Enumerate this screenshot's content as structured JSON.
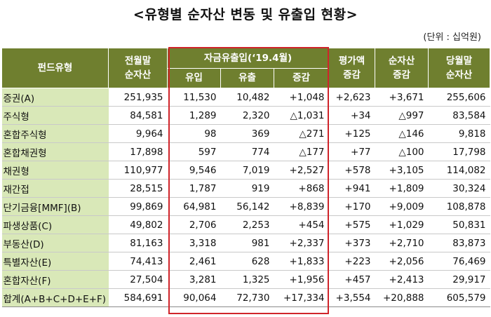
{
  "title": "<유형별 순자산 변동 및 유출입 현황>",
  "unit": "(단위 : 십억원)",
  "headers": {
    "fund_type": "펀드유형",
    "prev_nav_line1": "전월말",
    "prev_nav_line2": "순자산",
    "flow_group": "자금유출입(‘19.4월)",
    "inflow": "유입",
    "outflow": "유출",
    "net": "증감",
    "valuation_line1": "평가액",
    "valuation_line2": "증감",
    "nav_change_line1": "순자산",
    "nav_change_line2": "증감",
    "curr_nav_line1": "당월말",
    "curr_nav_line2": "순자산"
  },
  "rows": [
    {
      "label": "증권(A)",
      "prev": "251,935",
      "inflow": "11,530",
      "outflow": "10,482",
      "net": "+1,048",
      "valuation": "+2,623",
      "nav_change": "+3,671",
      "curr": "255,606"
    },
    {
      "label": "주식형",
      "prev": "84,581",
      "inflow": "1,289",
      "outflow": "2,320",
      "net": "△1,031",
      "valuation": "+34",
      "nav_change": "△997",
      "curr": "83,584"
    },
    {
      "label": "혼합주식형",
      "prev": "9,964",
      "inflow": "98",
      "outflow": "369",
      "net": "△271",
      "valuation": "+125",
      "nav_change": "△146",
      "curr": "9,818"
    },
    {
      "label": "혼합채권형",
      "prev": "17,898",
      "inflow": "597",
      "outflow": "774",
      "net": "△177",
      "valuation": "+77",
      "nav_change": "△100",
      "curr": "17,798"
    },
    {
      "label": "채권형",
      "prev": "110,977",
      "inflow": "9,546",
      "outflow": "7,019",
      "net": "+2,527",
      "valuation": "+578",
      "nav_change": "+3,105",
      "curr": "114,082"
    },
    {
      "label": "재간접",
      "prev": "28,515",
      "inflow": "1,787",
      "outflow": "919",
      "net": "+868",
      "valuation": "+941",
      "nav_change": "+1,809",
      "curr": "30,324"
    },
    {
      "label": "단기금융[MMF](B)",
      "prev": "99,869",
      "inflow": "64,981",
      "outflow": "56,142",
      "net": "+8,839",
      "valuation": "+170",
      "nav_change": "+9,009",
      "curr": "108,878"
    },
    {
      "label": "파생상품(C)",
      "prev": "49,802",
      "inflow": "2,706",
      "outflow": "2,253",
      "net": "+454",
      "valuation": "+575",
      "nav_change": "+1,029",
      "curr": "50,831"
    },
    {
      "label": "부동산(D)",
      "prev": "81,163",
      "inflow": "3,318",
      "outflow": "981",
      "net": "+2,337",
      "valuation": "+373",
      "nav_change": "+2,710",
      "curr": "83,873"
    },
    {
      "label": "특별자산(E)",
      "prev": "74,413",
      "inflow": "2,461",
      "outflow": "628",
      "net": "+1,833",
      "valuation": "+223",
      "nav_change": "+2,056",
      "curr": "76,469"
    },
    {
      "label": "혼합자산(F)",
      "prev": "27,504",
      "inflow": "3,281",
      "outflow": "1,325",
      "net": "+1,956",
      "valuation": "+457",
      "nav_change": "+2,413",
      "curr": "29,917"
    },
    {
      "label": "합계(A+B+C+D+E+F)",
      "prev": "584,691",
      "inflow": "90,064",
      "outflow": "72,730",
      "net": "+17,334",
      "valuation": "+3,554",
      "nav_change": "+20,888",
      "curr": "605,579"
    }
  ],
  "colors": {
    "header_bg": "#6f7f2f",
    "label_bg": "#d9e8b8",
    "highlight_border": "#d0242a"
  }
}
